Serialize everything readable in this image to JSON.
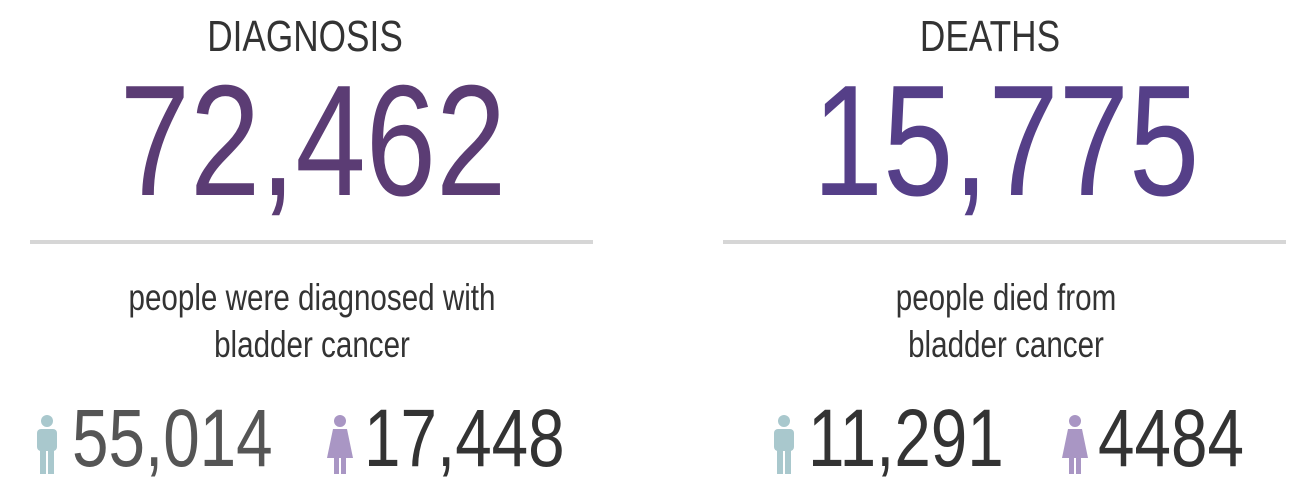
{
  "panels": [
    {
      "title": "DIAGNOSIS",
      "value": "72,462",
      "description": [
        "people were diagnosed with",
        "bladder cancer"
      ],
      "male": "55,014",
      "female": "17,448"
    },
    {
      "title": "DEATHS",
      "value": "15,775",
      "description": [
        "people died from",
        "bladder cancer"
      ],
      "male": "11,291",
      "female": "4484"
    }
  ]
}
